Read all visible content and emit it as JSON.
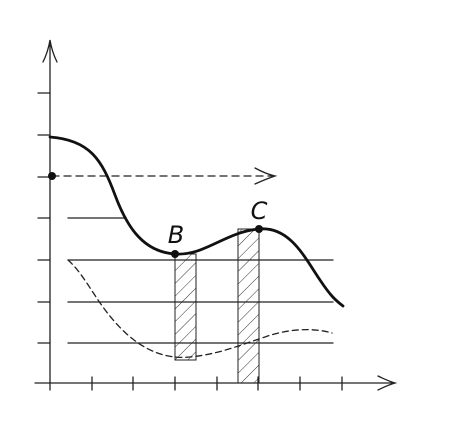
{
  "labels": {
    "b": "B",
    "c": "C"
  }
}
